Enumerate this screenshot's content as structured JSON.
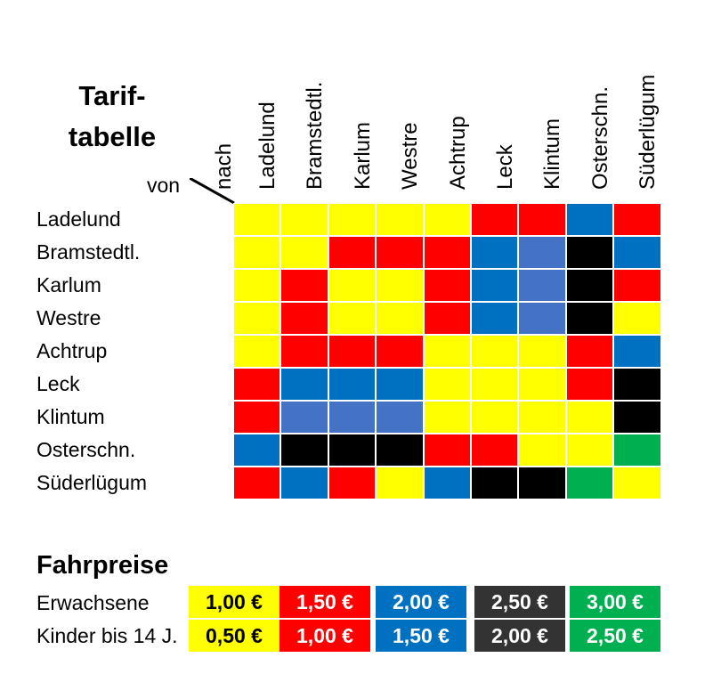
{
  "title": {
    "line1": "Tarif-",
    "line2": "tabelle"
  },
  "axis": {
    "col_label": "nach",
    "row_label": "von"
  },
  "columns": [
    "Ladelund",
    "Bramstedtl.",
    "Karlum",
    "Westre",
    "Achtrup",
    "Leck",
    "Klintum",
    "Osterschn.",
    "Süderlügum"
  ],
  "rows": [
    "Ladelund",
    "Bramstedtl.",
    "Karlum",
    "Westre",
    "Achtrup",
    "Leck",
    "Klintum",
    "Osterschn.",
    "Süderlügum"
  ],
  "colors": {
    "Y": "#FFFF00",
    "R": "#FF0000",
    "B": "#0070C0",
    "L": "#4472C4",
    "K": "#000000",
    "G": "#00B050",
    "D": "#333333"
  },
  "matrix": [
    [
      "Y",
      "Y",
      "Y",
      "Y",
      "Y",
      "R",
      "R",
      "B",
      "R"
    ],
    [
      "Y",
      "Y",
      "R",
      "R",
      "R",
      "B",
      "L",
      "K",
      "B"
    ],
    [
      "Y",
      "R",
      "Y",
      "Y",
      "R",
      "B",
      "L",
      "K",
      "R"
    ],
    [
      "Y",
      "R",
      "Y",
      "Y",
      "R",
      "B",
      "L",
      "K",
      "Y"
    ],
    [
      "Y",
      "R",
      "R",
      "R",
      "Y",
      "Y",
      "Y",
      "R",
      "B"
    ],
    [
      "R",
      "B",
      "B",
      "B",
      "Y",
      "Y",
      "Y",
      "R",
      "K"
    ],
    [
      "R",
      "L",
      "L",
      "L",
      "Y",
      "Y",
      "Y",
      "Y",
      "K"
    ],
    [
      "B",
      "K",
      "K",
      "K",
      "R",
      "R",
      "Y",
      "Y",
      "G"
    ],
    [
      "R",
      "B",
      "R",
      "Y",
      "B",
      "K",
      "K",
      "G",
      "Y"
    ]
  ],
  "fahrpreise": {
    "title": "Fahrpreise",
    "labels": [
      "Erwachsene",
      "Kinder bis 14 J."
    ],
    "tiers": [
      {
        "color": "#FFFF00",
        "text_color": "#000000",
        "adult": "1,00 €",
        "child": "0,50 €"
      },
      {
        "color": "#FF0000",
        "text_color": "#FFFFFF",
        "adult": "1,50 €",
        "child": "1,00 €"
      },
      {
        "color": "#0070C0",
        "text_color": "#FFFFFF",
        "adult": "2,00 €",
        "child": "1,50 €"
      },
      {
        "color": "#333333",
        "text_color": "#FFFFFF",
        "adult": "2,50 €",
        "child": "2,00 €"
      },
      {
        "color": "#00B050",
        "text_color": "#FFFFFF",
        "adult": "3,00 €",
        "child": "2,50 €"
      }
    ]
  }
}
